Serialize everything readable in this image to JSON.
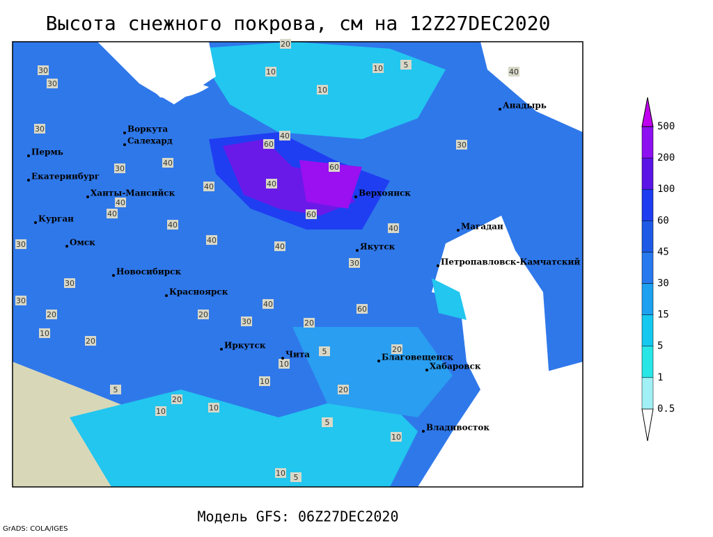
{
  "title": "Высота снежного покрова, см на 12Z27DEC2020",
  "footer": "Модель GFS: 06Z27DEC2020",
  "credit": "GrADS: COLA/IGES",
  "legend": {
    "levels": [
      "0.5",
      "1",
      "5",
      "15",
      "30",
      "45",
      "60",
      "100",
      "200",
      "500"
    ],
    "colors": [
      "#ffffff",
      "#a0f0f5",
      "#28e6e6",
      "#14c8f0",
      "#1ea0f0",
      "#2878ee",
      "#1e5ae6",
      "#1e3cf0",
      "#5a14e6",
      "#8c10f0",
      "#c000f0"
    ]
  },
  "cities": [
    "Анадырь",
    "Воркута",
    "Салехард",
    "Пермь",
    "Екатеринбург",
    "Ханты-Мансийск",
    "Верхоянск",
    "Курган",
    "Магадан",
    "Омск",
    "Якутск",
    "Петропавловск-Камчатский",
    "Новосибирск",
    "Красноярск",
    "Иркутск",
    "Чита",
    "Благовещенск",
    "Хабаровск",
    "Владивосток"
  ],
  "contour_labels": [
    "20",
    "30",
    "10",
    "5",
    "10",
    "10",
    "30",
    "30",
    "30",
    "40",
    "60",
    "40",
    "30",
    "40",
    "40",
    "40",
    "60",
    "40",
    "60",
    "40",
    "40",
    "40",
    "30",
    "40",
    "30",
    "30",
    "40",
    "60",
    "40",
    "30",
    "20",
    "30",
    "10",
    "20",
    "20",
    "20",
    "20",
    "10",
    "5",
    "10",
    "20",
    "5",
    "10",
    "20",
    "10",
    "5",
    "10",
    "10",
    "5"
  ]
}
